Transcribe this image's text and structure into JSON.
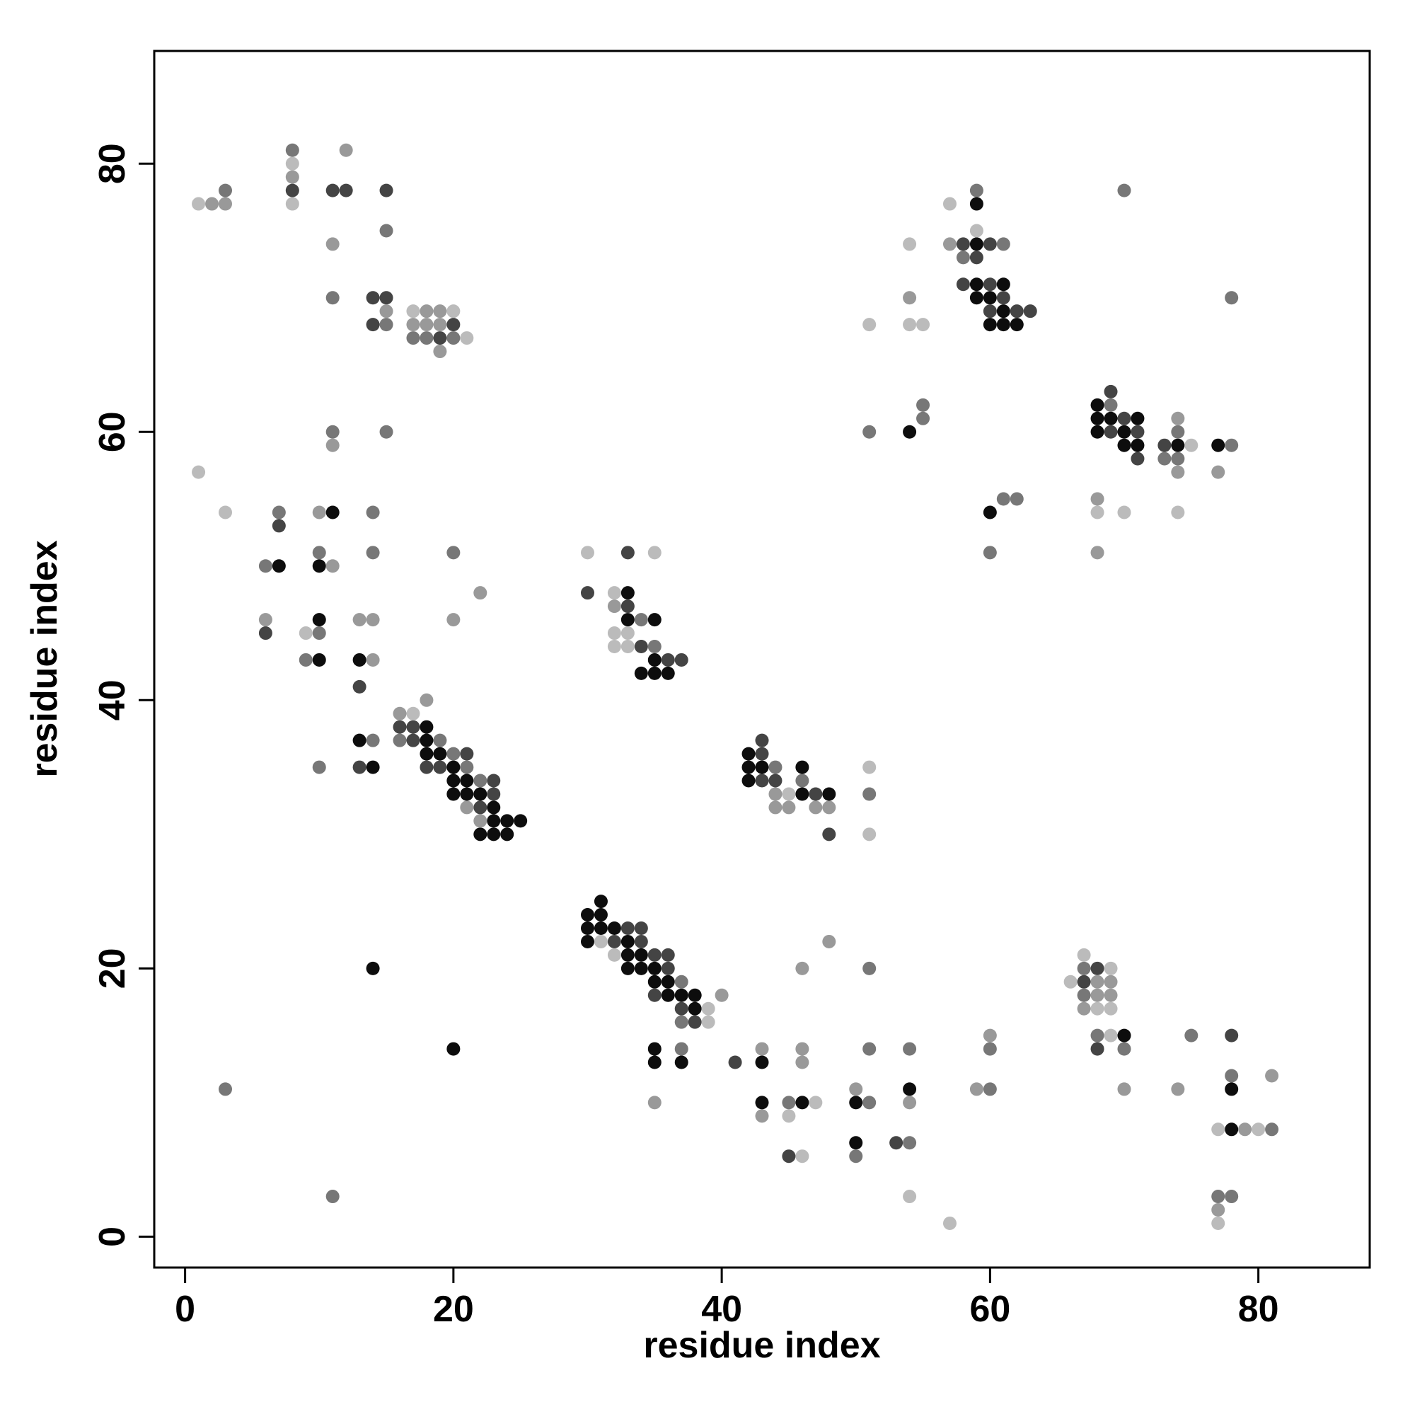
{
  "chart_data": {
    "type": "scatter",
    "x_label": "residue index",
    "y_label": "residue index",
    "xlim": [
      -2.3,
      88.3
    ],
    "ylim": [
      -2.3,
      88.4
    ],
    "xticks": [
      0,
      20,
      40,
      60,
      80
    ],
    "yticks": [
      0,
      20,
      40,
      60,
      80
    ],
    "series": [
      {
        "color": "#0d0d0d",
        "x": [
          59,
          59,
          59,
          61,
          59,
          60,
          61,
          60,
          61,
          62,
          68,
          68,
          69,
          71,
          54,
          68,
          70,
          70,
          71,
          74,
          77,
          11,
          60,
          7,
          10,
          33,
          10,
          33,
          35,
          10,
          13,
          35,
          34,
          35,
          36,
          18,
          13,
          18,
          18,
          19,
          42,
          14,
          20,
          42,
          43,
          46,
          20,
          21,
          42,
          20,
          21,
          22,
          46,
          48,
          23,
          23,
          24,
          25,
          22,
          23,
          24,
          31,
          30,
          31,
          30,
          31,
          32,
          30,
          33,
          33,
          34,
          14,
          33,
          34,
          35,
          35,
          36,
          36,
          37,
          38,
          38,
          70,
          20,
          35,
          35,
          37,
          43,
          54,
          78,
          43,
          46,
          50,
          78,
          50
        ],
        "values": [
          77,
          74,
          71,
          71,
          70,
          70,
          69,
          68,
          68,
          68,
          62,
          61,
          61,
          61,
          60,
          60,
          60,
          59,
          59,
          59,
          59,
          54,
          54,
          50,
          50,
          48,
          46,
          46,
          46,
          43,
          43,
          43,
          42,
          42,
          42,
          38,
          37,
          37,
          36,
          36,
          36,
          35,
          35,
          35,
          35,
          35,
          34,
          34,
          34,
          33,
          33,
          33,
          33,
          33,
          32,
          31,
          31,
          31,
          30,
          30,
          30,
          25,
          24,
          24,
          23,
          23,
          23,
          22,
          22,
          21,
          21,
          20,
          20,
          20,
          20,
          19,
          19,
          18,
          18,
          18,
          17,
          15,
          14,
          14,
          13,
          13,
          13,
          11,
          11,
          10,
          10,
          10,
          8,
          7
        ]
      },
      {
        "color": "#444444",
        "x": [
          11,
          8,
          12,
          15,
          58,
          60,
          59,
          58,
          60,
          14,
          15,
          61,
          60,
          62,
          63,
          14,
          20,
          19,
          69,
          70,
          69,
          71,
          73,
          71,
          7,
          33,
          30,
          33,
          6,
          34,
          36,
          37,
          13,
          16,
          17,
          17,
          43,
          21,
          43,
          13,
          18,
          19,
          23,
          43,
          44,
          23,
          47,
          22,
          48,
          33,
          34,
          32,
          34,
          35,
          36,
          36,
          68,
          67,
          35,
          37,
          38,
          78,
          68,
          41,
          53,
          45
        ],
        "values": [
          78,
          78,
          78,
          78,
          74,
          74,
          73,
          71,
          71,
          70,
          70,
          70,
          69,
          69,
          69,
          68,
          68,
          67,
          63,
          61,
          60,
          60,
          59,
          58,
          53,
          51,
          48,
          47,
          45,
          44,
          43,
          43,
          41,
          38,
          38,
          37,
          37,
          36,
          36,
          35,
          35,
          35,
          34,
          34,
          34,
          33,
          33,
          32,
          30,
          23,
          23,
          22,
          22,
          21,
          21,
          20,
          20,
          19,
          18,
          17,
          16,
          15,
          14,
          13,
          7,
          6
        ]
      },
      {
        "color": "#777777",
        "x": [
          8,
          3,
          59,
          70,
          15,
          61,
          58,
          11,
          78,
          15,
          17,
          18,
          20,
          55,
          69,
          55,
          11,
          15,
          51,
          74,
          78,
          73,
          74,
          61,
          62,
          7,
          14,
          10,
          14,
          20,
          60,
          6,
          34,
          10,
          35,
          9,
          14,
          16,
          19,
          20,
          10,
          21,
          44,
          22,
          46,
          51,
          51,
          67,
          37,
          67,
          37,
          68,
          75,
          37,
          51,
          54,
          60,
          70,
          78,
          3,
          60,
          45,
          51,
          81,
          54,
          50,
          11,
          77,
          78
        ],
        "values": [
          81,
          78,
          78,
          78,
          75,
          74,
          73,
          70,
          70,
          68,
          67,
          67,
          67,
          62,
          62,
          61,
          60,
          60,
          60,
          60,
          59,
          58,
          58,
          55,
          55,
          54,
          54,
          51,
          51,
          51,
          51,
          50,
          46,
          45,
          44,
          43,
          37,
          37,
          37,
          36,
          35,
          35,
          35,
          34,
          34,
          33,
          20,
          20,
          19,
          18,
          16,
          15,
          15,
          14,
          14,
          14,
          14,
          14,
          12,
          11,
          11,
          10,
          10,
          8,
          7,
          6,
          3,
          3,
          3
        ]
      },
      {
        "color": "#999999",
        "x": [
          12,
          8,
          2,
          3,
          11,
          57,
          54,
          15,
          18,
          19,
          17,
          18,
          19,
          19,
          74,
          11,
          74,
          77,
          68,
          10,
          68,
          11,
          22,
          32,
          6,
          13,
          14,
          20,
          14,
          18,
          16,
          44,
          21,
          44,
          45,
          47,
          48,
          22,
          48,
          46,
          68,
          69,
          40,
          68,
          69,
          67,
          60,
          43,
          46,
          46,
          81,
          50,
          59,
          70,
          74,
          35,
          54,
          43,
          79,
          77
        ],
        "values": [
          81,
          79,
          77,
          77,
          74,
          74,
          70,
          69,
          69,
          69,
          68,
          68,
          68,
          66,
          61,
          59,
          57,
          57,
          55,
          54,
          51,
          50,
          48,
          47,
          46,
          46,
          46,
          46,
          43,
          40,
          39,
          33,
          32,
          32,
          32,
          32,
          32,
          31,
          22,
          20,
          19,
          19,
          18,
          18,
          18,
          17,
          15,
          14,
          14,
          13,
          12,
          11,
          11,
          11,
          11,
          10,
          10,
          9,
          8,
          2
        ]
      },
      {
        "color": "#bbbbbb",
        "x": [
          8,
          1,
          8,
          57,
          59,
          54,
          17,
          20,
          51,
          54,
          55,
          21,
          75,
          1,
          3,
          68,
          70,
          74,
          30,
          35,
          32,
          9,
          32,
          33,
          32,
          33,
          17,
          51,
          45,
          51,
          31,
          32,
          67,
          69,
          66,
          39,
          68,
          69,
          39,
          69,
          47,
          45,
          77,
          80,
          46,
          54,
          57,
          77
        ],
        "values": [
          80,
          77,
          77,
          77,
          75,
          74,
          69,
          69,
          68,
          68,
          68,
          67,
          59,
          57,
          54,
          54,
          54,
          54,
          51,
          51,
          48,
          45,
          45,
          45,
          44,
          44,
          39,
          35,
          33,
          30,
          22,
          21,
          21,
          20,
          19,
          17,
          17,
          17,
          16,
          15,
          10,
          9,
          8,
          8,
          6,
          3,
          1,
          1
        ]
      }
    ]
  }
}
